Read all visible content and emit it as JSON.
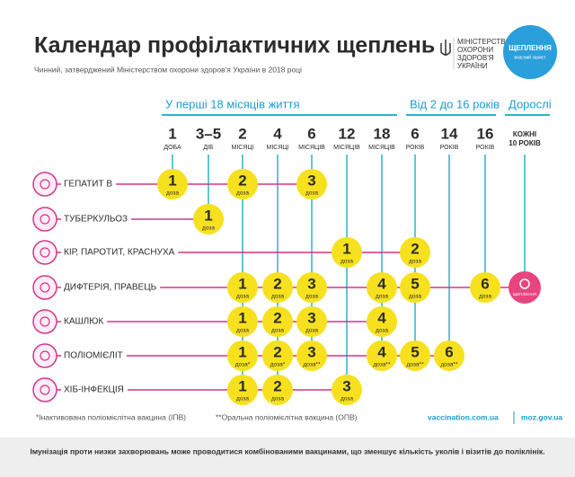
{
  "header": {
    "title": "Календар профілактичних щеплень",
    "subtitle": "Чинний, затверджений Міністерством охорони здоров'я України в 2018 році"
  },
  "logo": {
    "ministry": [
      "МІНІСТЕРСТВО",
      "ОХОРОНИ",
      "ЗДОРОВ'Я",
      "УКРАЇНИ"
    ],
    "campaign": [
      "ЩЕПЛЕННЯ",
      "вчасний захист"
    ]
  },
  "groups": [
    "У перші 18 місяців життя",
    "Від 2 до 16 років",
    "Дорослі"
  ],
  "columns": [
    {
      "num": "1",
      "unit": "ДОБА"
    },
    {
      "num": "3–5",
      "unit": "ДІБ"
    },
    {
      "num": "2",
      "unit": "МІСЯЦІ"
    },
    {
      "num": "4",
      "unit": "МІСЯЦІ"
    },
    {
      "num": "6",
      "unit": "МІСЯЦІВ"
    },
    {
      "num": "12",
      "unit": "МІСЯЦІВ"
    },
    {
      "num": "18",
      "unit": "МІСЯЦІВ"
    },
    {
      "num": "6",
      "unit": "РОКІВ"
    },
    {
      "num": "14",
      "unit": "РОКІВ"
    },
    {
      "num": "16",
      "unit": "РОКІВ"
    },
    {
      "num": "КОЖНІ",
      "unit": "10 РОКІВ"
    }
  ],
  "rows": [
    {
      "name": "ГЕПАТИТ В",
      "doses": [
        {
          "n": 1,
          "unit": "доза"
        },
        null,
        {
          "n": 2,
          "unit": "доза"
        },
        null,
        {
          "n": 3,
          "unit": "доза"
        },
        null,
        null,
        null,
        null,
        null,
        null
      ]
    },
    {
      "name": "ТУБЕРКУЛЬОЗ",
      "doses": [
        null,
        {
          "n": 1,
          "unit": "доза"
        },
        null,
        null,
        null,
        null,
        null,
        null,
        null,
        null,
        null
      ]
    },
    {
      "name": "КІР, ПАРОТИТ, КРАСНУХА",
      "doses": [
        null,
        null,
        null,
        null,
        null,
        {
          "n": 1,
          "unit": "доза"
        },
        null,
        {
          "n": 2,
          "unit": "доза"
        },
        null,
        null,
        null
      ]
    },
    {
      "name": "ДИФТЕРІЯ, ПРАВЕЦЬ",
      "doses": [
        null,
        null,
        {
          "n": 1,
          "unit": "доза"
        },
        {
          "n": 2,
          "unit": "доза"
        },
        {
          "n": 3,
          "unit": "доза"
        },
        null,
        {
          "n": 4,
          "unit": "доза"
        },
        {
          "n": 5,
          "unit": "доза"
        },
        null,
        {
          "n": 6,
          "unit": "доза"
        },
        {
          "label": "ЩЕПЛЕННЯ"
        }
      ]
    },
    {
      "name": "КАШЛЮК",
      "doses": [
        null,
        null,
        {
          "n": 1,
          "unit": "доза"
        },
        {
          "n": 2,
          "unit": "доза"
        },
        {
          "n": 3,
          "unit": "доза"
        },
        null,
        {
          "n": 4,
          "unit": "доза"
        },
        null,
        null,
        null,
        null
      ]
    },
    {
      "name": "ПОЛІОМІЄЛІТ",
      "doses": [
        null,
        null,
        {
          "n": 1,
          "unit": "доза*"
        },
        {
          "n": 2,
          "unit": "доза*"
        },
        {
          "n": 3,
          "unit": "доза**"
        },
        null,
        {
          "n": 4,
          "unit": "доза**"
        },
        {
          "n": 5,
          "unit": "доза**"
        },
        {
          "n": 6,
          "unit": "доза**"
        },
        null,
        null
      ]
    },
    {
      "name": "ХІБ-ІНФЕКЦІЯ",
      "doses": [
        null,
        null,
        {
          "n": 1,
          "unit": "доза"
        },
        {
          "n": 2,
          "unit": "доза"
        },
        null,
        {
          "n": 3,
          "unit": "доза"
        },
        null,
        null,
        null,
        null,
        null
      ]
    }
  ],
  "footer": {
    "notes": [
      "*Інактивована поліомієлітна вакцина (ІПВ)",
      "**Оральна поліомієлітна вакцина (ОПВ)"
    ],
    "links": [
      "vaccination.com.ua",
      "moz.gov.ua"
    ],
    "bar": "Імунізація проти низки захворювань може проводитися комбінованими вакцинами, що зменшує кількість уколів і візитів до поліклінік."
  }
}
